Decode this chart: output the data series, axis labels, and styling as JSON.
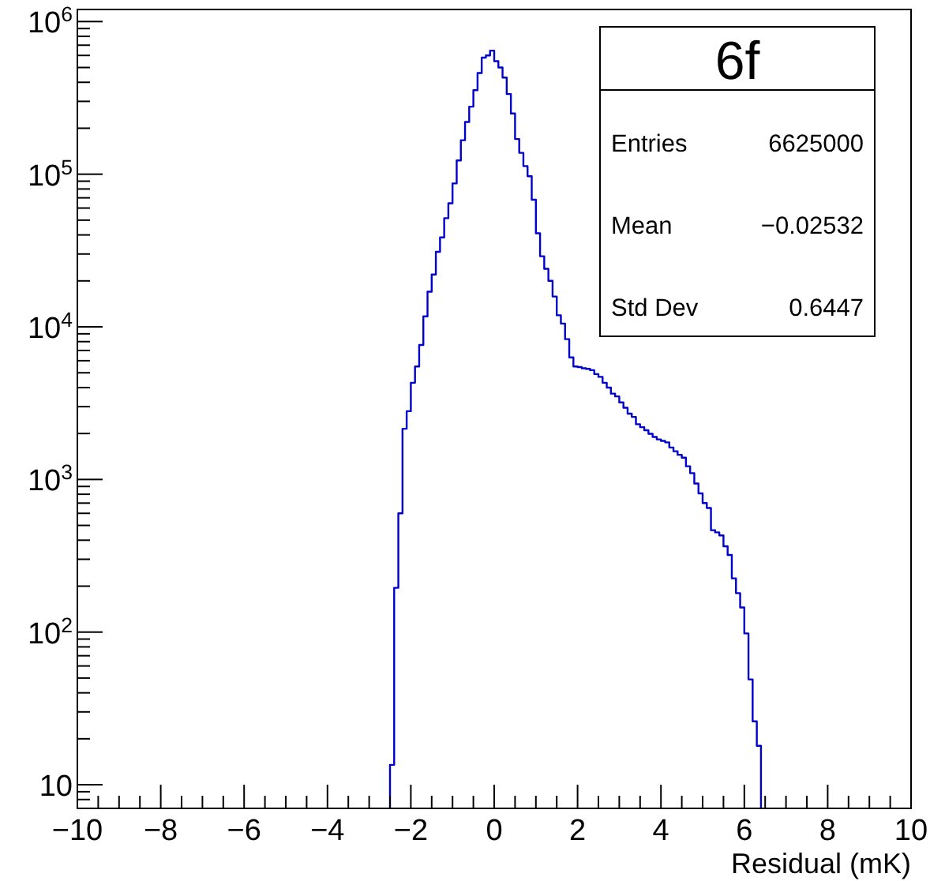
{
  "chart_data": {
    "type": "histogram",
    "title": "6f",
    "xlabel": "Residual (mK)",
    "bins": [
      -2.5,
      -2.4,
      -2.3,
      -2.2,
      -2.1,
      -2.0,
      -1.9,
      -1.8,
      -1.7,
      -1.6,
      -1.5,
      -1.4,
      -1.3,
      -1.2,
      -1.1,
      -1.0,
      -0.9,
      -0.8,
      -0.7,
      -0.6,
      -0.5,
      -0.4,
      -0.3,
      -0.2,
      -0.1,
      0.0,
      0.1,
      0.2,
      0.3,
      0.4,
      0.5,
      0.6,
      0.7,
      0.8,
      0.9,
      1.0,
      1.1,
      1.2,
      1.3,
      1.4,
      1.5,
      1.6,
      1.7,
      1.8,
      1.9,
      2.0,
      2.1,
      2.2,
      2.3,
      2.4,
      2.5,
      2.6,
      2.7,
      2.8,
      2.9,
      3.0,
      3.1,
      3.2,
      3.3,
      3.4,
      3.5,
      3.6,
      3.7,
      3.8,
      3.9,
      4.0,
      4.1,
      4.2,
      4.3,
      4.4,
      4.5,
      4.6,
      4.7,
      4.8,
      4.9,
      5.0,
      5.1,
      5.2,
      5.3,
      5.4,
      5.5,
      5.6,
      5.7,
      5.8,
      5.9,
      6.0,
      6.1,
      6.2,
      6.3,
      6.4
    ],
    "values": [
      13.5,
      195,
      600,
      2150,
      2800,
      4300,
      5500,
      7600,
      11700,
      17000,
      22000,
      31000,
      38500,
      51500,
      64500,
      87000,
      123000,
      167000,
      220000,
      277000,
      355000,
      460000,
      580000,
      600000,
      645000,
      550000,
      500000,
      430000,
      335000,
      250000,
      170000,
      138000,
      113000,
      97000,
      68000,
      41000,
      29000,
      24000,
      20000,
      15800,
      11900,
      10500,
      8300,
      6300,
      5500,
      5450,
      5350,
      5300,
      5200,
      4900,
      4700,
      4300,
      4000,
      3650,
      3500,
      3200,
      2950,
      2700,
      2570,
      2300,
      2200,
      2100,
      1990,
      1900,
      1830,
      1790,
      1750,
      1620,
      1530,
      1450,
      1390,
      1220,
      1100,
      940,
      810,
      700,
      650,
      465,
      450,
      430,
      365,
      320,
      225,
      180,
      145,
      98,
      49,
      26,
      18
    ],
    "color": "#0000cc",
    "log": "y",
    "grid": false,
    "xlim": [
      -10,
      10
    ],
    "xticks": [
      {
        "value": -10,
        "label": "−10"
      },
      {
        "value": -8,
        "label": "−8"
      },
      {
        "value": -6,
        "label": "−6"
      },
      {
        "value": -4,
        "label": "−4"
      },
      {
        "value": -2,
        "label": "−2"
      },
      0,
      2,
      4,
      6,
      8,
      10
    ],
    "ylim": [
      7,
      1200000
    ],
    "yticks": [
      10,
      {
        "value": 100,
        "label": "10$^{2}$"
      },
      {
        "value": 1000,
        "label": "10$^{3}$"
      },
      {
        "value": 10000,
        "label": "10$^{4}$"
      },
      {
        "value": 100000,
        "label": "10$^{5}$"
      },
      {
        "value": 1000000,
        "label": "10$^{6}$"
      }
    ],
    "annotations": [
      "Entries",
      "6625000",
      "Mean",
      "−0.02532",
      "Std Dev",
      "0.6447"
    ]
  }
}
